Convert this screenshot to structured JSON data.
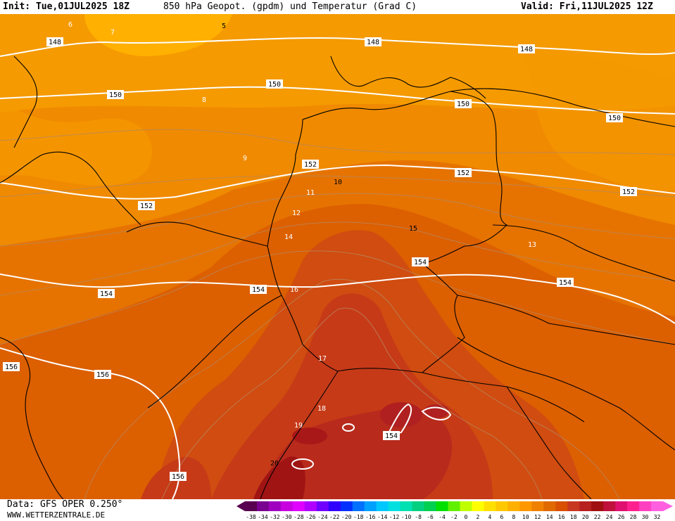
{
  "header": {
    "init": "Init: Tue,01JUL2025 18Z",
    "title": "850 hPa Geopot. (gpdm) und Temperatur (Grad C)",
    "valid": "Valid: Fri,11JUL2025 12Z"
  },
  "footer": {
    "data_source": "Data: GFS OPER 0.250°",
    "website": "WWW.WETTERZENTRALE.DE"
  },
  "legend": {
    "ticks": [
      "-38",
      "-34",
      "-32",
      "-30",
      "-28",
      "-26",
      "-24",
      "-22",
      "-20",
      "-18",
      "-16",
      "-14",
      "-12",
      "-10",
      "-8",
      "-6",
      "-4",
      "-2",
      "0",
      "2",
      "4",
      "6",
      "8",
      "10",
      "12",
      "14",
      "16",
      "18",
      "20",
      "22",
      "24",
      "26",
      "28",
      "30",
      "32"
    ],
    "colors": [
      "#5a0050",
      "#7a0090",
      "#a000c0",
      "#c800e0",
      "#e000ff",
      "#b000ff",
      "#7000ff",
      "#3000ff",
      "#0030ff",
      "#0070ff",
      "#00a0ff",
      "#00c8ff",
      "#00e0e0",
      "#00e0b0",
      "#00d080",
      "#00d050",
      "#00e000",
      "#60f000",
      "#c0ff00",
      "#ffff00",
      "#ffe000",
      "#ffc800",
      "#ffb000",
      "#ff9800",
      "#f08000",
      "#e06a00",
      "#d85000",
      "#c83820",
      "#b82020",
      "#a01010",
      "#c0103c",
      "#e01070",
      "#ff2090",
      "#ff40c0",
      "#ff60e0"
    ]
  },
  "map": {
    "geopotential_labels": [
      {
        "text": "148",
        "pos": "nw"
      },
      {
        "text": "148",
        "pos": "n-center"
      },
      {
        "text": "148",
        "pos": "ne"
      },
      {
        "text": "150",
        "pos": "w"
      },
      {
        "text": "150",
        "pos": "center"
      },
      {
        "text": "150",
        "pos": "e-center"
      },
      {
        "text": "150",
        "pos": "e"
      },
      {
        "text": "152",
        "pos": "w"
      },
      {
        "text": "152",
        "pos": "center"
      },
      {
        "text": "152",
        "pos": "e-center"
      },
      {
        "text": "152",
        "pos": "e"
      },
      {
        "text": "154",
        "pos": "w"
      },
      {
        "text": "154",
        "pos": "center"
      },
      {
        "text": "154",
        "pos": "center-e"
      },
      {
        "text": "154",
        "pos": "e"
      },
      {
        "text": "154",
        "pos": "s-center"
      },
      {
        "text": "156",
        "pos": "w"
      },
      {
        "text": "156",
        "pos": "sw"
      },
      {
        "text": "156",
        "pos": "s"
      }
    ],
    "temperature_labels": [
      "5",
      "6",
      "7",
      "8",
      "9",
      "10",
      "11",
      "12",
      "13",
      "14",
      "15",
      "16",
      "17",
      "18",
      "19",
      "20"
    ]
  }
}
